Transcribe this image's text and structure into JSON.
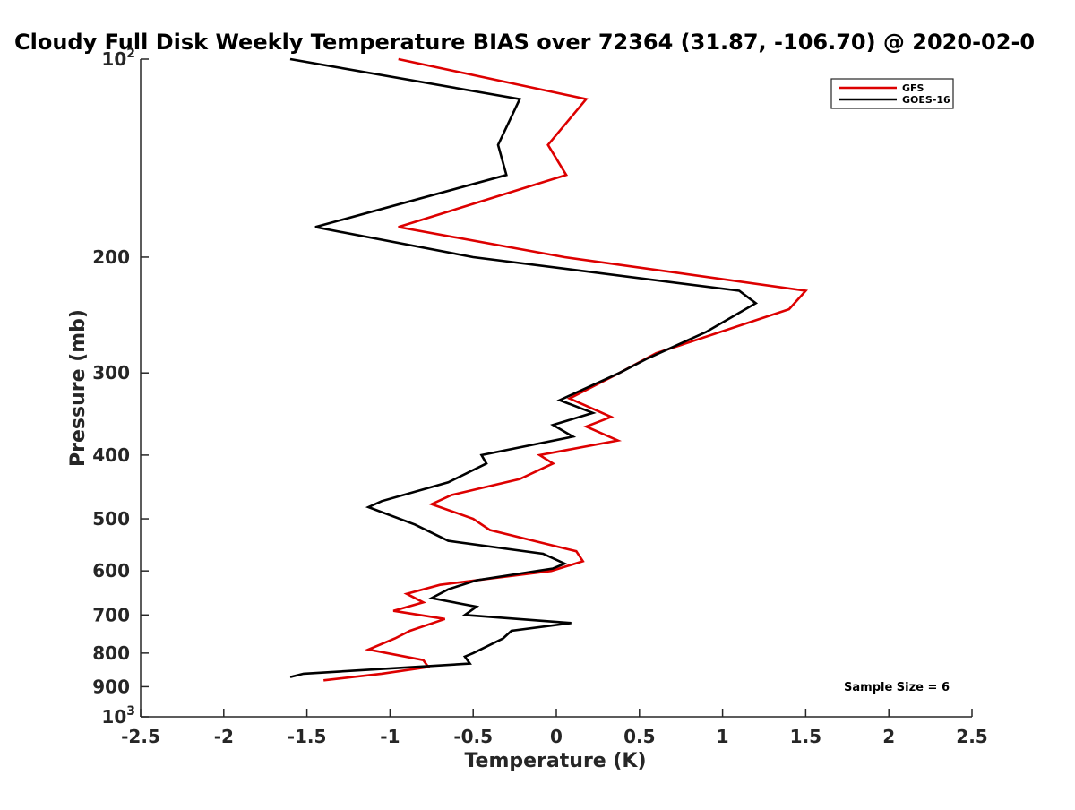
{
  "chart_data": {
    "type": "line",
    "title": "Cloudy Full Disk Weekly Temperature BIAS over 72364 (31.87, -106.70) @ 2020-02-0",
    "xlabel": "Temperature (K)",
    "ylabel": "Pressure (mb)",
    "xlim": [
      -2.5,
      2.5
    ],
    "ylim": [
      100,
      1000
    ],
    "y_scale": "log",
    "y_reversed": true,
    "grid": false,
    "legend_position": "top-right",
    "x_ticks": [
      "-2.5",
      "-2",
      "-1.5",
      "-1",
      "-0.5",
      "0",
      "0.5",
      "1",
      "1.5",
      "2",
      "2.5"
    ],
    "y_ticks": [
      {
        "value": 100,
        "label": "10",
        "sup": "2"
      },
      {
        "value": 200,
        "label": "200",
        "sup": ""
      },
      {
        "value": 300,
        "label": "300",
        "sup": ""
      },
      {
        "value": 400,
        "label": "400",
        "sup": ""
      },
      {
        "value": 500,
        "label": "500",
        "sup": ""
      },
      {
        "value": 600,
        "label": "600",
        "sup": ""
      },
      {
        "value": 700,
        "label": "700",
        "sup": ""
      },
      {
        "value": 800,
        "label": "800",
        "sup": ""
      },
      {
        "value": 900,
        "label": "900",
        "sup": ""
      },
      {
        "value": 1000,
        "label": "10",
        "sup": "3"
      }
    ],
    "series": [
      {
        "name": "GFS",
        "color": "#dd0000",
        "points": [
          [
            -0.95,
            100
          ],
          [
            0.18,
            115
          ],
          [
            -0.05,
            135
          ],
          [
            0.06,
            150
          ],
          [
            -0.95,
            180
          ],
          [
            0.05,
            200
          ],
          [
            1.5,
            225
          ],
          [
            1.4,
            240
          ],
          [
            0.6,
            280
          ],
          [
            0.38,
            300
          ],
          [
            0.08,
            328
          ],
          [
            0.33,
            350
          ],
          [
            0.18,
            362
          ],
          [
            0.37,
            380
          ],
          [
            -0.1,
            400
          ],
          [
            -0.02,
            412
          ],
          [
            -0.22,
            435
          ],
          [
            -0.63,
            460
          ],
          [
            -0.75,
            475
          ],
          [
            -0.5,
            500
          ],
          [
            -0.4,
            520
          ],
          [
            0.12,
            560
          ],
          [
            0.16,
            580
          ],
          [
            -0.03,
            600
          ],
          [
            -0.7,
            630
          ],
          [
            -0.9,
            650
          ],
          [
            -0.8,
            670
          ],
          [
            -0.98,
            690
          ],
          [
            -0.67,
            710
          ],
          [
            -0.88,
            740
          ],
          [
            -0.97,
            760
          ],
          [
            -1.13,
            790
          ],
          [
            -0.8,
            820
          ],
          [
            -0.77,
            840
          ],
          [
            -1.05,
            860
          ],
          [
            -1.4,
            880
          ]
        ]
      },
      {
        "name": "GOES-16",
        "color": "#000000",
        "points": [
          [
            -1.6,
            100
          ],
          [
            -0.22,
            115
          ],
          [
            -0.35,
            135
          ],
          [
            -0.3,
            150
          ],
          [
            -1.45,
            180
          ],
          [
            -0.5,
            200
          ],
          [
            1.1,
            225
          ],
          [
            1.2,
            235
          ],
          [
            0.9,
            260
          ],
          [
            0.55,
            285
          ],
          [
            0.38,
            300
          ],
          [
            0.02,
            330
          ],
          [
            0.22,
            345
          ],
          [
            -0.02,
            360
          ],
          [
            0.1,
            375
          ],
          [
            -0.45,
            400
          ],
          [
            -0.42,
            412
          ],
          [
            -0.65,
            440
          ],
          [
            -1.05,
            470
          ],
          [
            -1.13,
            480
          ],
          [
            -0.85,
            510
          ],
          [
            -0.65,
            540
          ],
          [
            -0.08,
            565
          ],
          [
            0.05,
            585
          ],
          [
            -0.02,
            595
          ],
          [
            -0.48,
            620
          ],
          [
            -0.65,
            640
          ],
          [
            -0.75,
            660
          ],
          [
            -0.48,
            680
          ],
          [
            -0.55,
            700
          ],
          [
            0.09,
            720
          ],
          [
            -0.27,
            740
          ],
          [
            -0.32,
            760
          ],
          [
            -0.5,
            800
          ],
          [
            -0.55,
            810
          ],
          [
            -0.52,
            830
          ],
          [
            -1.52,
            860
          ],
          [
            -1.6,
            870
          ]
        ]
      }
    ],
    "annotation": "Sample Size = 6"
  }
}
